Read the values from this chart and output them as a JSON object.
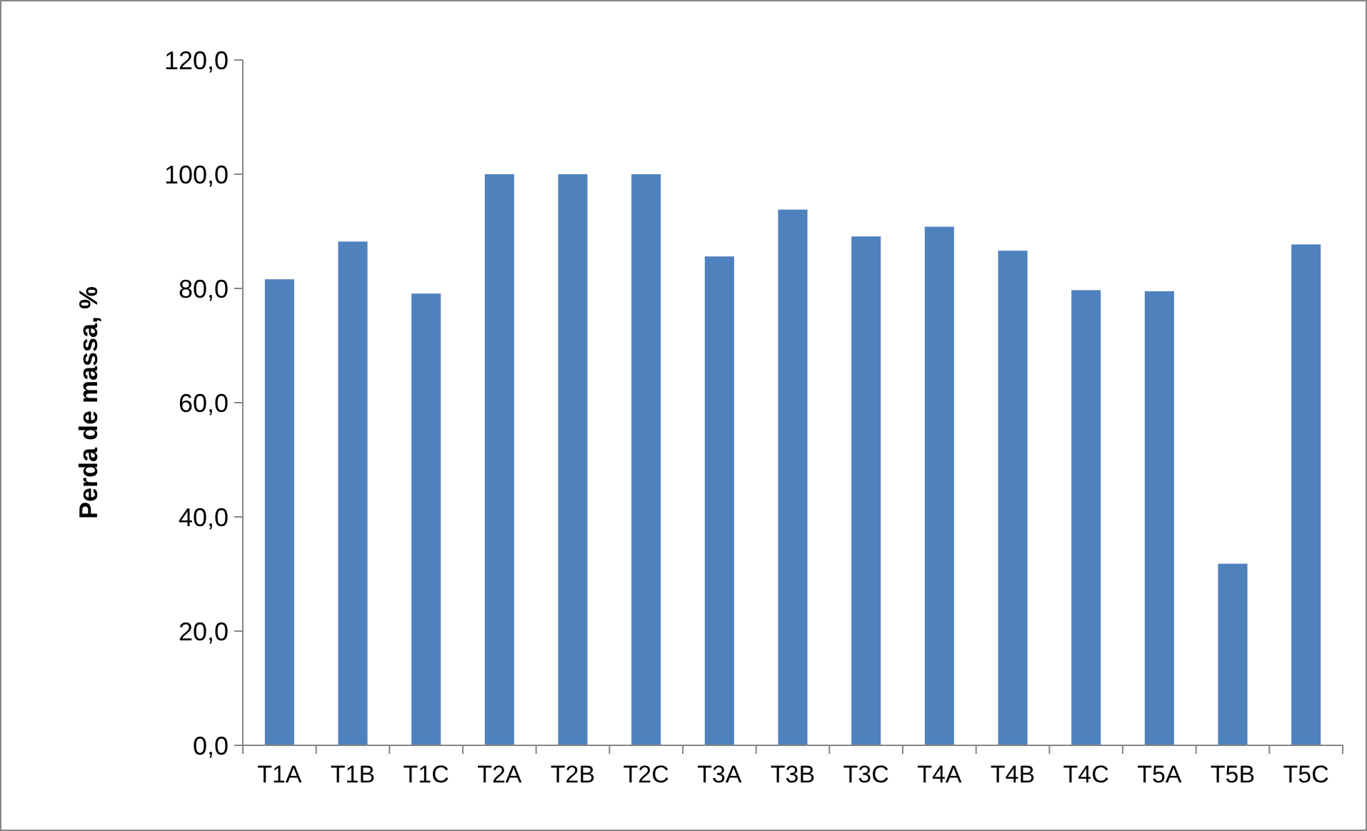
{
  "chart_data": {
    "type": "bar",
    "ylabel": "Perda de massa, %",
    "categories": [
      "T1A",
      "T1B",
      "T1C",
      "T2A",
      "T2B",
      "T2C",
      "T3A",
      "T3B",
      "T3C",
      "T4A",
      "T4B",
      "T4C",
      "T5A",
      "T5B",
      "T5C"
    ],
    "values": [
      81.6,
      88.2,
      79.1,
      100,
      100,
      100,
      85.6,
      93.8,
      89.1,
      90.8,
      86.6,
      79.7,
      79.5,
      31.8,
      87.7
    ],
    "color": "#4f81bd",
    "ylim": [
      0,
      120
    ],
    "yticks": [
      {
        "value": 0,
        "label": "0,0"
      },
      {
        "value": 20,
        "label": "20,0"
      },
      {
        "value": 40,
        "label": "40,0"
      },
      {
        "value": 60,
        "label": "60,0"
      },
      {
        "value": 80,
        "label": "80,0"
      },
      {
        "value": 100,
        "label": "100,0"
      },
      {
        "value": 120,
        "label": "120,0"
      }
    ],
    "grid": false
  }
}
